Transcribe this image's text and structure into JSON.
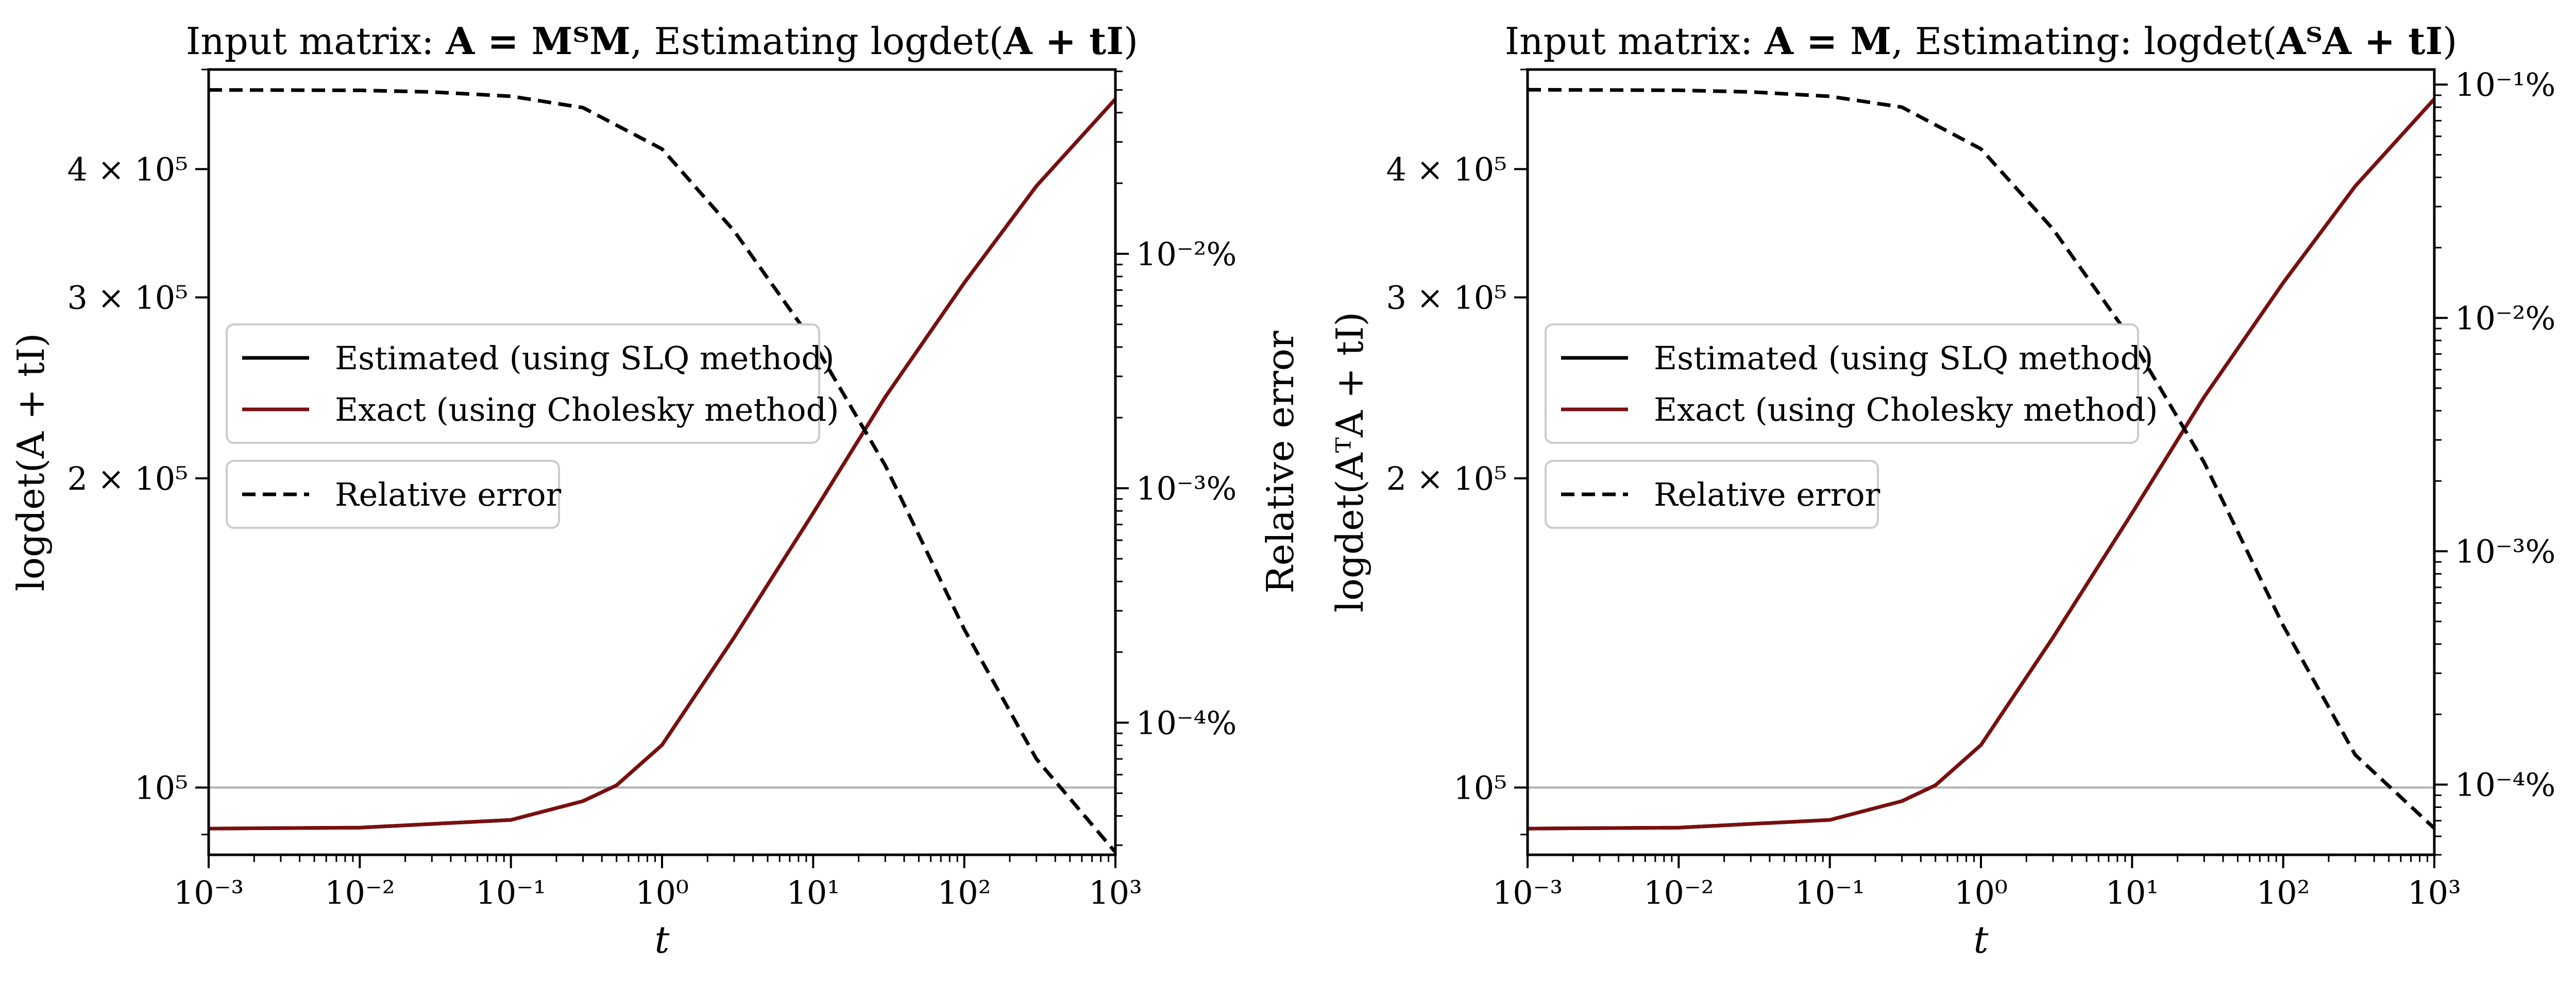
{
  "chart_data": [
    {
      "type": "line",
      "title_prefix": "Input matrix: ",
      "title_math1": "A = MᵀM",
      "title_mid": ", Estimating logdet(",
      "title_math2": "A + tI",
      "title_suffix": ")",
      "xlabel": "t",
      "ylabel": "logdet(A + tI)",
      "ylabel_right": "Relative error",
      "xscale": "log",
      "xlim": [
        0.001,
        1000
      ],
      "yscale": "log",
      "ylim": [
        86000,
        500000
      ],
      "yticks": [
        100000,
        200000,
        300000,
        400000
      ],
      "ytick_labels": [
        "10⁵",
        "2 × 10⁵",
        "3 × 10⁵",
        "4 × 10⁵"
      ],
      "y2scale": "log",
      "y2lim": [
        2.73e-05,
        0.0611
      ],
      "y2ticks": [
        0.0001,
        0.001,
        0.01
      ],
      "y2tick_labels": [
        "10⁻⁴%",
        "10⁻³%",
        "10⁻²%"
      ],
      "xtick_labels": [
        "10⁻³",
        "10⁻²",
        "10⁻¹",
        "10⁰",
        "10¹",
        "10²",
        "10³"
      ],
      "hline": 100000,
      "legend_placement": "center-left",
      "legend": [
        "Estimated (using SLQ method)",
        "Exact (using Cholesky method)",
        "Relative error"
      ],
      "series": [
        {
          "name": "Estimated (using SLQ method)",
          "axis": "left",
          "color": "#000000",
          "style": "solid",
          "x": [
            0.001,
            0.01,
            0.1,
            0.3,
            0.5,
            1,
            3,
            10,
            30,
            100,
            300,
            1000
          ],
          "y": [
            91200,
            91400,
            93000,
            97000,
            100500,
            110000,
            140000,
            185000,
            240000,
            310000,
            385000,
            468000
          ]
        },
        {
          "name": "Exact (using Cholesky method)",
          "axis": "left",
          "color": "#7a0f0f",
          "style": "solid",
          "x": [
            0.001,
            0.01,
            0.1,
            0.3,
            0.5,
            1,
            3,
            10,
            30,
            100,
            300,
            1000
          ],
          "y": [
            91200,
            91400,
            93000,
            97000,
            100500,
            110000,
            140000,
            185000,
            240000,
            310000,
            385000,
            468000
          ]
        },
        {
          "name": "Relative error",
          "axis": "right",
          "color": "#000000",
          "style": "dashed",
          "x": [
            0.001,
            0.01,
            0.03,
            0.1,
            0.3,
            1,
            3,
            10,
            30,
            100,
            300,
            1000
          ],
          "y": [
            0.05,
            0.0498,
            0.049,
            0.047,
            0.042,
            0.028,
            0.0125,
            0.0042,
            0.00125,
            0.00025,
            7e-05,
            2.8e-05
          ]
        }
      ]
    },
    {
      "type": "line",
      "title_prefix": "Input matrix: ",
      "title_math1": "A = M",
      "title_mid": ", Estimating: logdet(",
      "title_math2": "AᵀA + tI",
      "title_suffix": ")",
      "xlabel": "t",
      "ylabel": "logdet(AᵀA + tI)",
      "ylabel_right": "Relative error",
      "xscale": "log",
      "xlim": [
        0.001,
        1000
      ],
      "yscale": "log",
      "ylim": [
        86000,
        500000
      ],
      "yticks": [
        100000,
        200000,
        300000,
        400000
      ],
      "ytick_labels": [
        "10⁵",
        "2 × 10⁵",
        "3 × 10⁵",
        "4 × 10⁵"
      ],
      "y2scale": "log",
      "y2lim": [
        5e-05,
        0.116
      ],
      "y2ticks": [
        0.0001,
        0.001,
        0.01,
        0.1
      ],
      "y2tick_labels": [
        "10⁻⁴%",
        "10⁻³%",
        "10⁻²%",
        "10⁻¹%"
      ],
      "xtick_labels": [
        "10⁻³",
        "10⁻²",
        "10⁻¹",
        "10⁰",
        "10¹",
        "10²",
        "10³"
      ],
      "hline": 100000,
      "legend_placement": "center-left",
      "legend": [
        "Estimated (using SLQ method)",
        "Exact (using Cholesky method)",
        "Relative error"
      ],
      "series": [
        {
          "name": "Estimated (using SLQ method)",
          "axis": "left",
          "color": "#000000",
          "style": "solid",
          "x": [
            0.001,
            0.01,
            0.1,
            0.3,
            0.5,
            1,
            3,
            10,
            30,
            100,
            300,
            1000
          ],
          "y": [
            91200,
            91400,
            93000,
            97000,
            100500,
            110000,
            140000,
            185000,
            240000,
            310000,
            385000,
            468000
          ]
        },
        {
          "name": "Exact (using Cholesky method)",
          "axis": "left",
          "color": "#7a0f0f",
          "style": "solid",
          "x": [
            0.001,
            0.01,
            0.1,
            0.3,
            0.5,
            1,
            3,
            10,
            30,
            100,
            300,
            1000
          ],
          "y": [
            91200,
            91400,
            93000,
            97000,
            100500,
            110000,
            140000,
            185000,
            240000,
            310000,
            385000,
            468000
          ]
        },
        {
          "name": "Relative error",
          "axis": "right",
          "color": "#000000",
          "style": "dashed",
          "x": [
            0.001,
            0.01,
            0.03,
            0.1,
            0.3,
            1,
            3,
            10,
            30,
            100,
            300,
            1000
          ],
          "y": [
            0.095,
            0.0945,
            0.093,
            0.089,
            0.08,
            0.053,
            0.024,
            0.008,
            0.0024,
            0.00048,
            0.000134,
            6.5e-05
          ]
        }
      ]
    }
  ]
}
